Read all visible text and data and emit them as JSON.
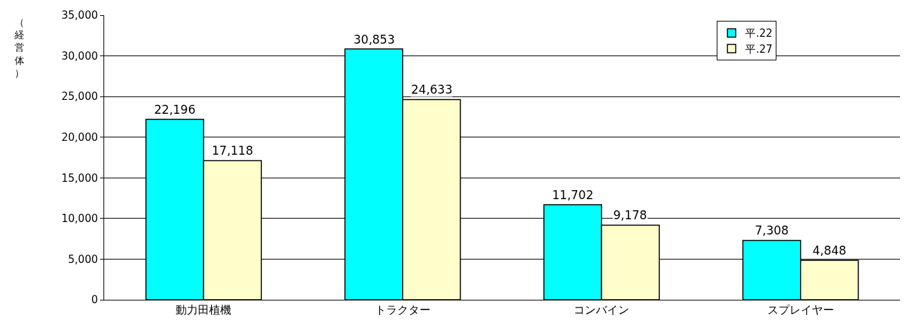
{
  "chart_data": {
    "type": "bar",
    "ylabel": "（経営体）",
    "categories": [
      "動力田植機",
      "トラクター",
      "コンバイン",
      "スプレイヤー"
    ],
    "series": [
      {
        "name": "平.22",
        "color": "#00ffff",
        "values": [
          22196,
          30853,
          11702,
          7308
        ],
        "value_labels": [
          "22,196",
          "30,853",
          "11,702",
          "7,308"
        ]
      },
      {
        "name": "平.27",
        "color": "#ffffcc",
        "values": [
          17118,
          24633,
          9178,
          4848
        ],
        "value_labels": [
          "17,118",
          "24,633",
          "9,178",
          "4,848"
        ]
      }
    ],
    "ylim": [
      0,
      35000
    ],
    "yticks": [
      {
        "value": 0,
        "label": "0"
      },
      {
        "value": 5000,
        "label": "5,000"
      },
      {
        "value": 10000,
        "label": "10,000"
      },
      {
        "value": 15000,
        "label": "15,000"
      },
      {
        "value": 20000,
        "label": "20,000"
      },
      {
        "value": 25000,
        "label": "25,000"
      },
      {
        "value": 30000,
        "label": "30,000"
      },
      {
        "value": 35000,
        "label": "35,000"
      }
    ],
    "grid": "y",
    "legend": "top right"
  }
}
